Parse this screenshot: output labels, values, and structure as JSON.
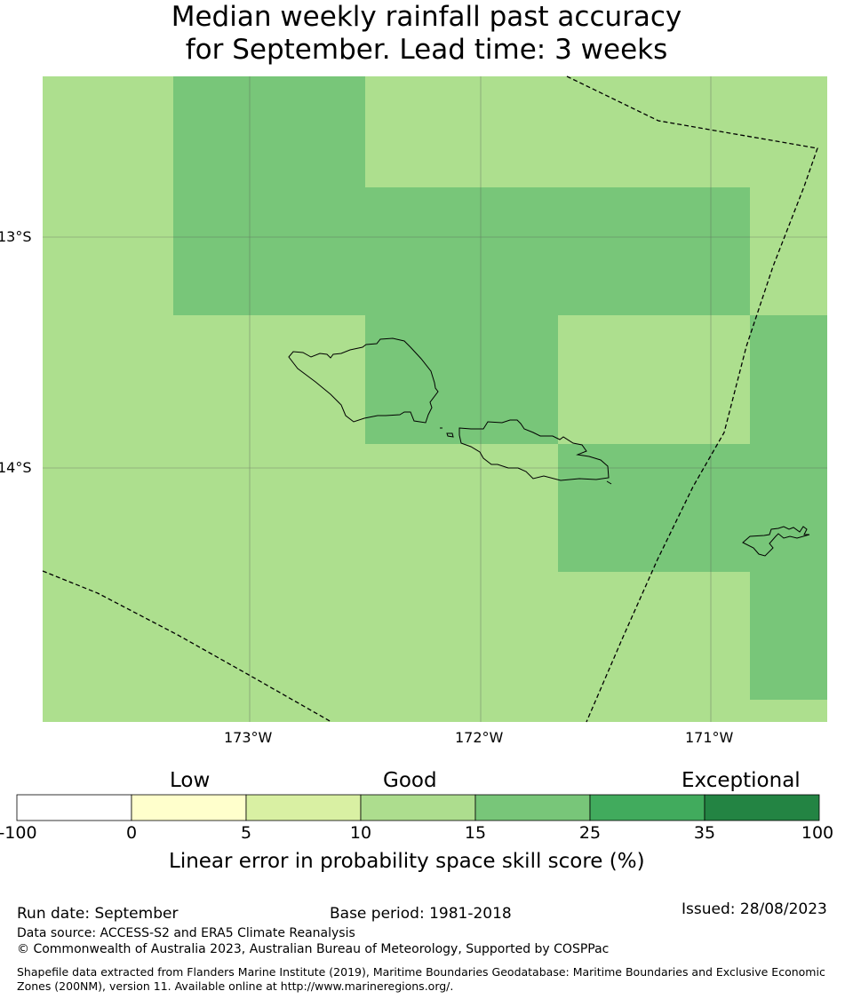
{
  "title_line1": "Median weekly rainfall past accuracy",
  "title_line2": "for September. Lead time: 3 weeks",
  "map": {
    "lat_labels": [
      "13°S",
      "14°S"
    ],
    "lon_labels": [
      "173°W",
      "172°W",
      "171°W"
    ],
    "background_color": "#addf8e",
    "tile_color": "#78c679",
    "coastline_color": "#000000",
    "boundary_style": "dashed"
  },
  "colorbar": {
    "categories": [
      "Low",
      "Good",
      "Exceptional"
    ],
    "ticks": [
      "-100",
      "0",
      "5",
      "10",
      "15",
      "25",
      "35",
      "100"
    ],
    "colors": [
      "#ffffff",
      "#ffffcc",
      "#d9f0a3",
      "#addd8e",
      "#78c679",
      "#41ab5d",
      "#238443"
    ],
    "label": "Linear error in probability space skill score (%)"
  },
  "footer": {
    "run_date": "Run date: September",
    "base_period": "Base period: 1981-2018",
    "issued": "Issued: 28/08/2023",
    "data_source": "Data source: ACCESS-S2 and ERA5 Climate Reanalysis",
    "copyright": "© Commonwealth of Australia 2023, Australian Bureau of Meteorology, Supported by COSPPac",
    "shapefile_note": "Shapefile data extracted from Flanders Marine Institute (2019), Maritime Boundaries Geodatabase: Maritime Boundaries and Exclusive Economic Zones (200NM), version 11. Available online at http://www.marineregions.org/."
  }
}
